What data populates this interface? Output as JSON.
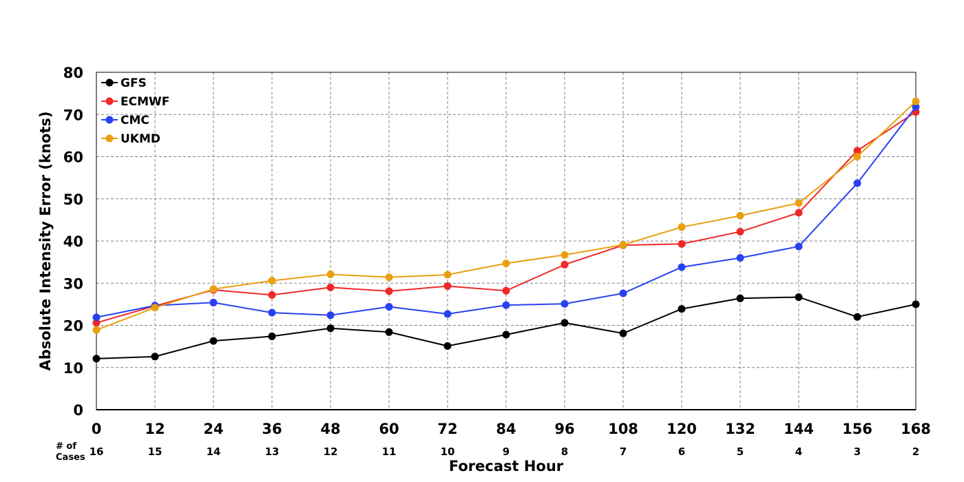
{
  "chart_data": {
    "type": "line",
    "x": [
      0,
      12,
      24,
      36,
      48,
      60,
      72,
      84,
      96,
      108,
      120,
      132,
      144,
      156,
      168
    ],
    "cases": [
      16,
      15,
      14,
      13,
      12,
      11,
      10,
      9,
      8,
      7,
      6,
      5,
      4,
      3,
      2
    ],
    "cases_label_line1": "# of",
    "cases_label_line2": "Cases",
    "xlabel": "Forecast Hour",
    "ylabel": "Absolute Intensity Error (knots)",
    "xlim": [
      0,
      168
    ],
    "ylim": [
      0,
      80
    ],
    "yticks": [
      0,
      10,
      20,
      30,
      40,
      50,
      60,
      70,
      80
    ],
    "grid": true,
    "legend_position": "top-left",
    "series": [
      {
        "name": "GFS",
        "color": "#000000",
        "values": [
          12.1,
          12.6,
          16.3,
          17.4,
          19.3,
          18.4,
          15.1,
          17.8,
          20.6,
          18.1,
          23.9,
          26.4,
          26.7,
          22.0,
          25.0
        ]
      },
      {
        "name": "ECMWF",
        "color": "#f02828",
        "values": [
          20.6,
          24.6,
          28.4,
          27.2,
          29.0,
          28.1,
          29.3,
          28.2,
          34.4,
          39.0,
          39.3,
          42.2,
          46.7,
          61.4,
          70.6
        ]
      },
      {
        "name": "CMC",
        "color": "#2841f0",
        "values": [
          21.9,
          24.7,
          25.4,
          23.0,
          22.4,
          24.4,
          22.7,
          24.8,
          25.1,
          27.6,
          33.8,
          36.0,
          38.7,
          53.7,
          71.8
        ]
      },
      {
        "name": "UKMD",
        "color": "#e8a010",
        "values": [
          18.9,
          24.2,
          28.6,
          30.6,
          32.1,
          31.4,
          32.0,
          34.7,
          36.7,
          39.1,
          43.3,
          46.0,
          49.0,
          60.0,
          73.1
        ]
      }
    ]
  }
}
